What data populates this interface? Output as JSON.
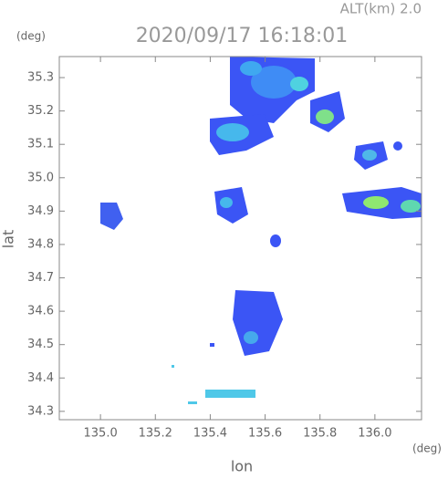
{
  "chart_data": {
    "type": "map",
    "title": "2020/09/17 16:18:01",
    "subtitle": "ALT(km) 2.0",
    "y_unit": "(deg)",
    "x_unit": "(deg)",
    "y_label": "lat",
    "x_label": "lon",
    "xlim": [
      134.85,
      136.17
    ],
    "ylim": [
      34.275,
      35.363
    ],
    "xticks": [
      {
        "value": 135,
        "label": "135.0"
      },
      135.2,
      135.4,
      135.6,
      135.8,
      {
        "value": 136,
        "label": "136.0"
      }
    ],
    "yticks": [
      34.3,
      34.4,
      34.5,
      34.6,
      34.7,
      34.8,
      34.9,
      {
        "value": 35,
        "label": "35.0"
      },
      35.1,
      35.2,
      35.3
    ]
  }
}
